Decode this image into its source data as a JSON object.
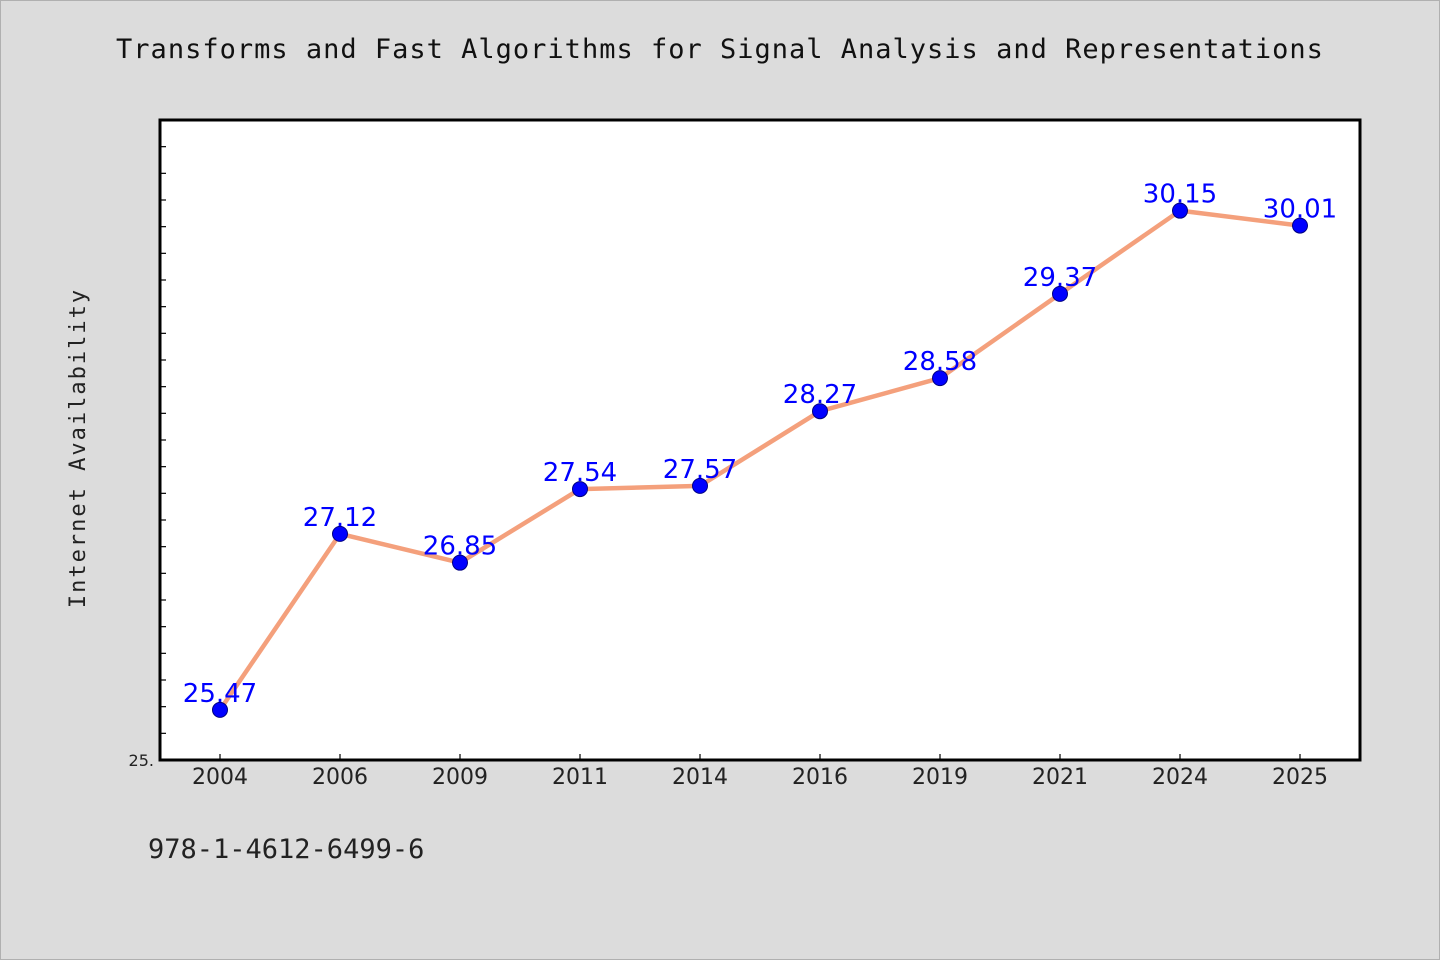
{
  "title": "Transforms and Fast Algorithms for Signal Analysis and Representations",
  "footer": "978-1-4612-6499-6",
  "chart_data": {
    "type": "line",
    "title": "Transforms and Fast Algorithms for Signal Analysis and Representations",
    "xlabel": "",
    "ylabel": "Internet Availability",
    "categories": [
      "2004",
      "2006",
      "2009",
      "2011",
      "2014",
      "2016",
      "2019",
      "2021",
      "2024",
      "2025"
    ],
    "series": [
      {
        "values": [
          25.47,
          27.12,
          26.85,
          27.54,
          27.57,
          28.27,
          28.58,
          29.37,
          30.15,
          30.01
        ],
        "labels": [
          "25.47",
          "27.12",
          "26.85",
          "27.54",
          "27.57",
          "28.27",
          "28.58",
          "29.37",
          "30.15",
          "30.01"
        ]
      }
    ],
    "ylim": [
      25.0,
      31.0
    ],
    "y_tick_label": "25.",
    "grid": false,
    "legend": "none",
    "colors": {
      "line": "#f4a07c",
      "marker": "#0000ff",
      "data_label": "#0000ff",
      "plot_background": "#ffffff",
      "page_background": "#dcdcdc"
    }
  }
}
